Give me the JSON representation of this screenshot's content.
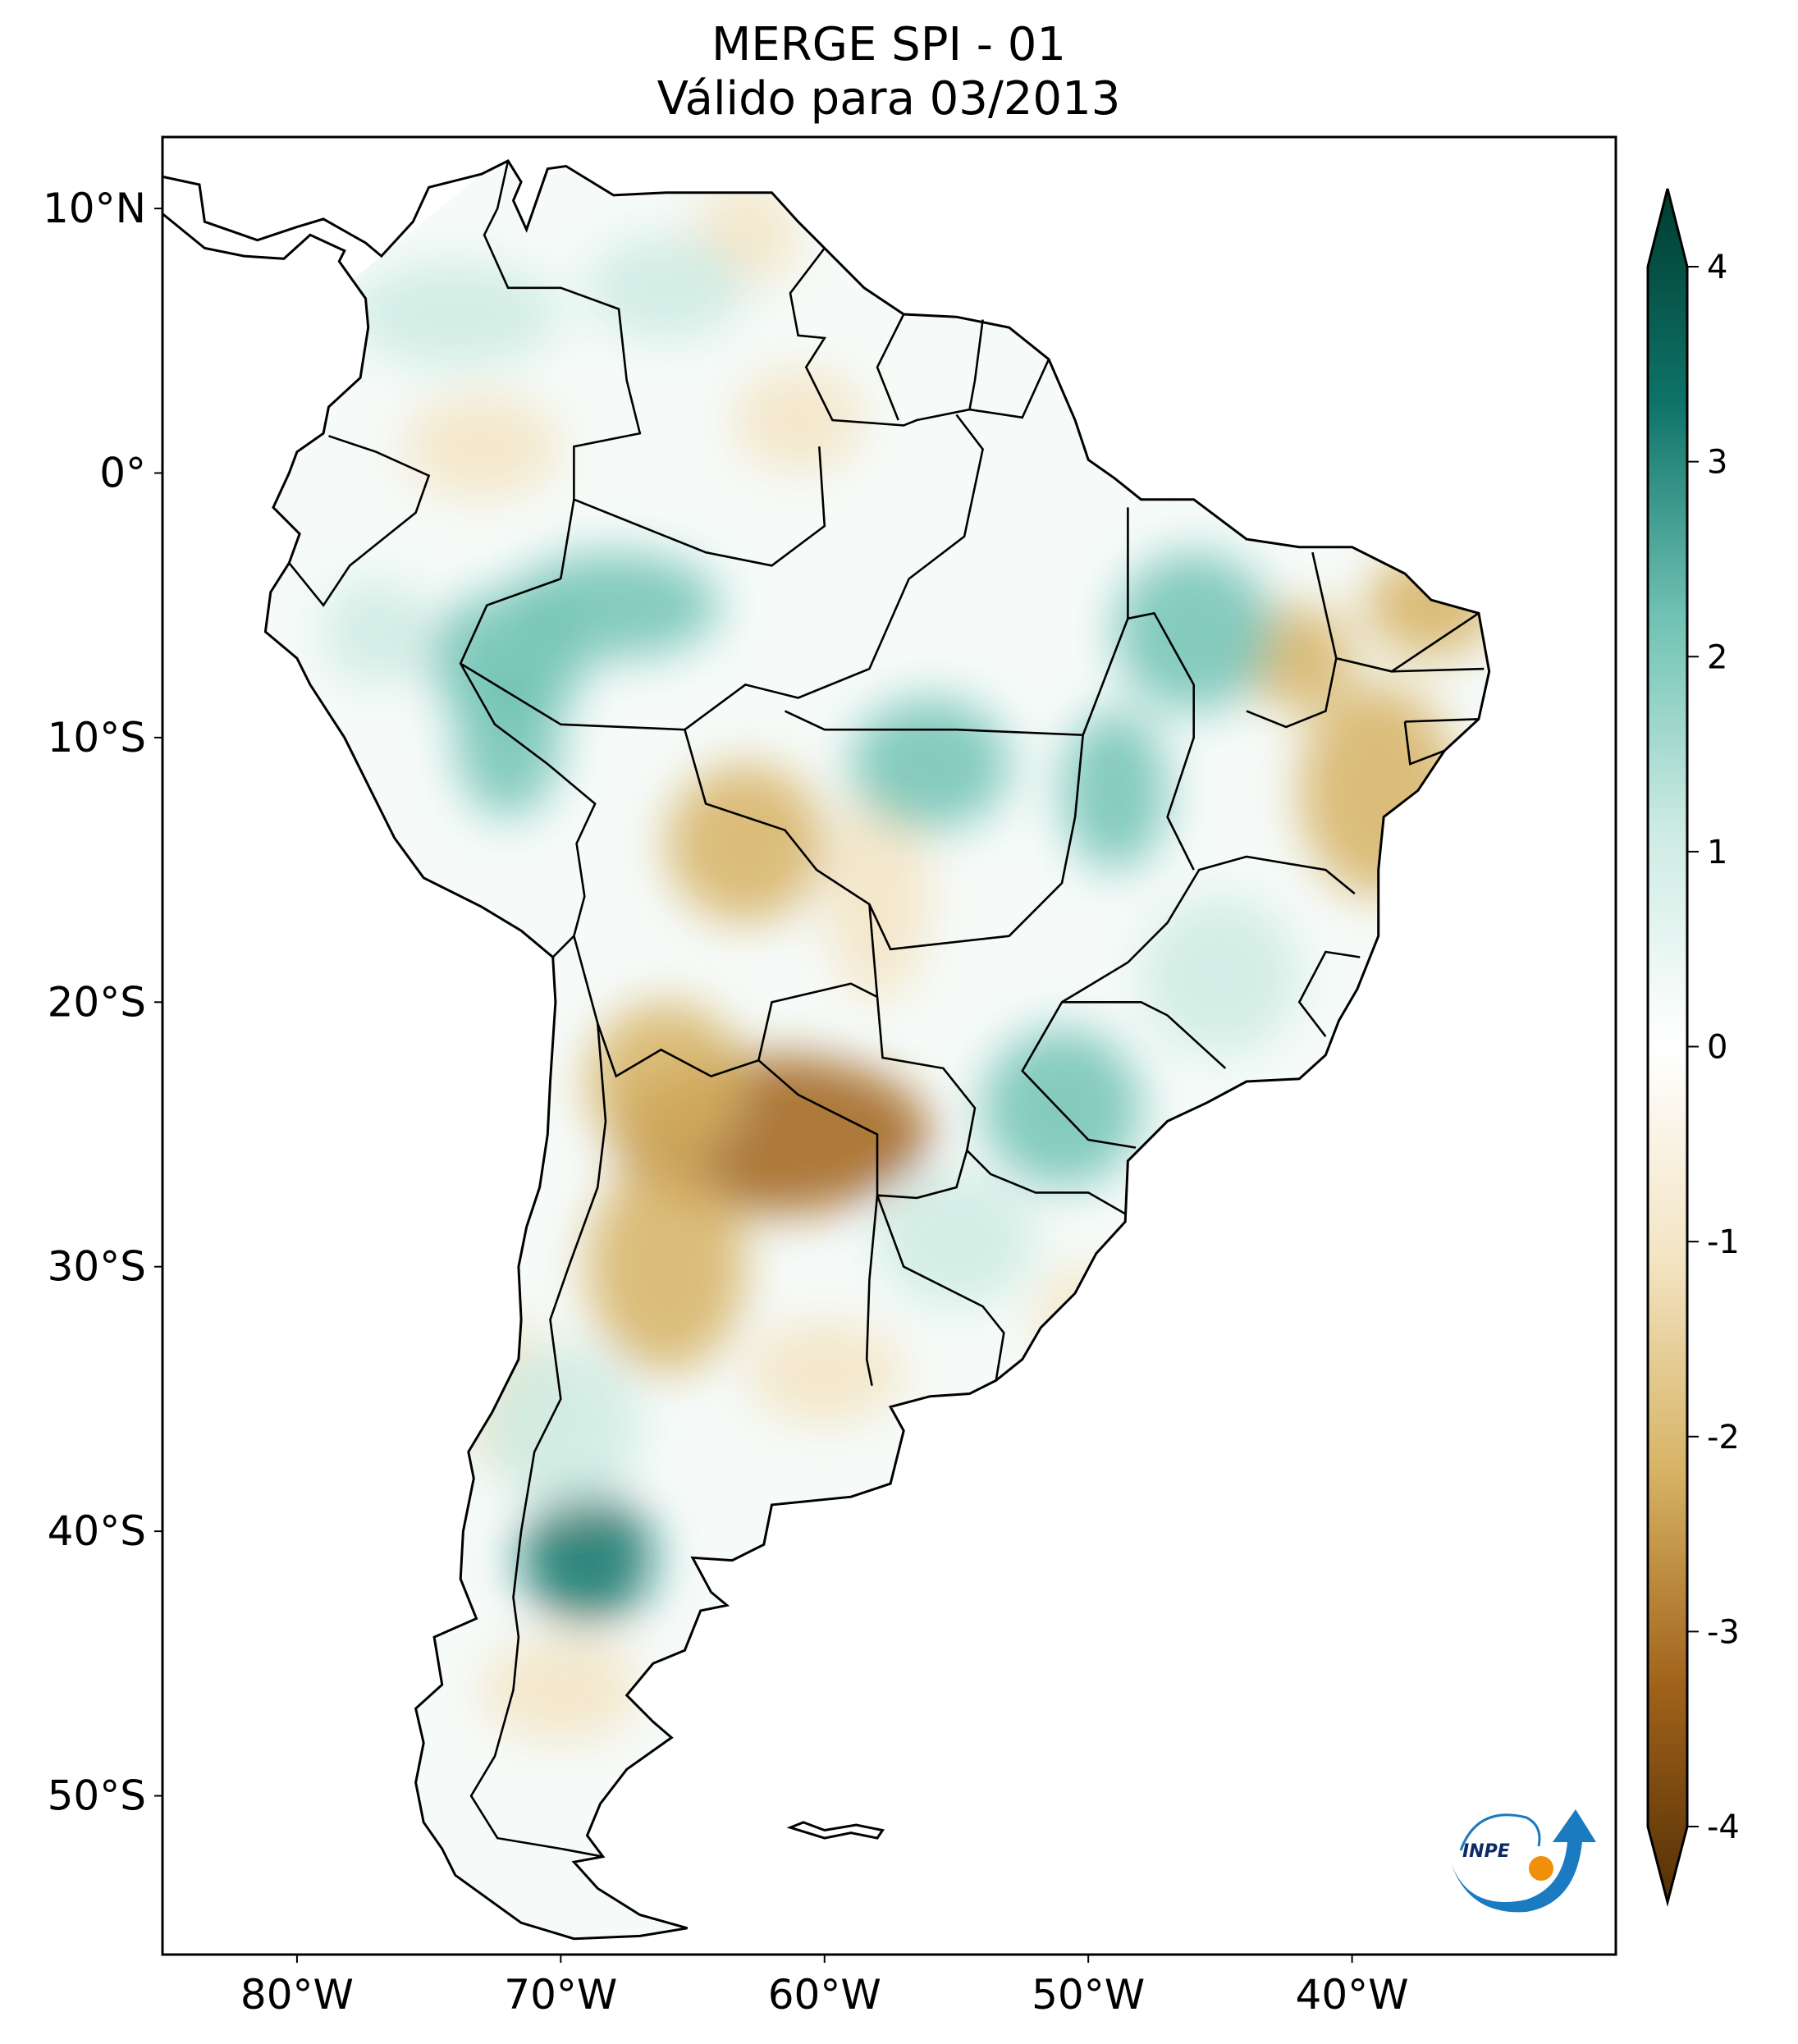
{
  "title": {
    "line1": "MERGE   SPI - 01",
    "line2": "Válido para 03/2013"
  },
  "map": {
    "projection": "plate-carree",
    "extent": {
      "lon": [
        -85.1,
        -30
      ],
      "lat": [
        -56,
        12.7
      ]
    },
    "lat_ticks": [
      {
        "value": 10,
        "label": "10°N"
      },
      {
        "value": 0,
        "label": "0°"
      },
      {
        "value": -10,
        "label": "10°S"
      },
      {
        "value": -20,
        "label": "20°S"
      },
      {
        "value": -30,
        "label": "30°S"
      },
      {
        "value": -40,
        "label": "40°S"
      },
      {
        "value": -50,
        "label": "50°S"
      }
    ],
    "lon_ticks": [
      {
        "value": -80,
        "label": "80°W"
      },
      {
        "value": -70,
        "label": "70°W"
      },
      {
        "value": -60,
        "label": "60°W"
      },
      {
        "value": -50,
        "label": "50°W"
      },
      {
        "value": -40,
        "label": "40°W"
      }
    ]
  },
  "colorbar": {
    "colormap": "BrBG",
    "range": [
      -4,
      4
    ],
    "extend": "both",
    "ticks": [
      "4",
      "3",
      "2",
      "1",
      "0",
      "-1",
      "-2",
      "-3",
      "-4"
    ],
    "colors": {
      "-4": "#543005",
      "-3": "#a0621a",
      "-2": "#d6b263",
      "-1": "#f3e4c3",
      "0": "#ffffff",
      "1": "#cdebe3",
      "2": "#70c2b4",
      "3": "#0f7368",
      "4": "#003c30"
    }
  },
  "logo": {
    "text": "INPE"
  }
}
